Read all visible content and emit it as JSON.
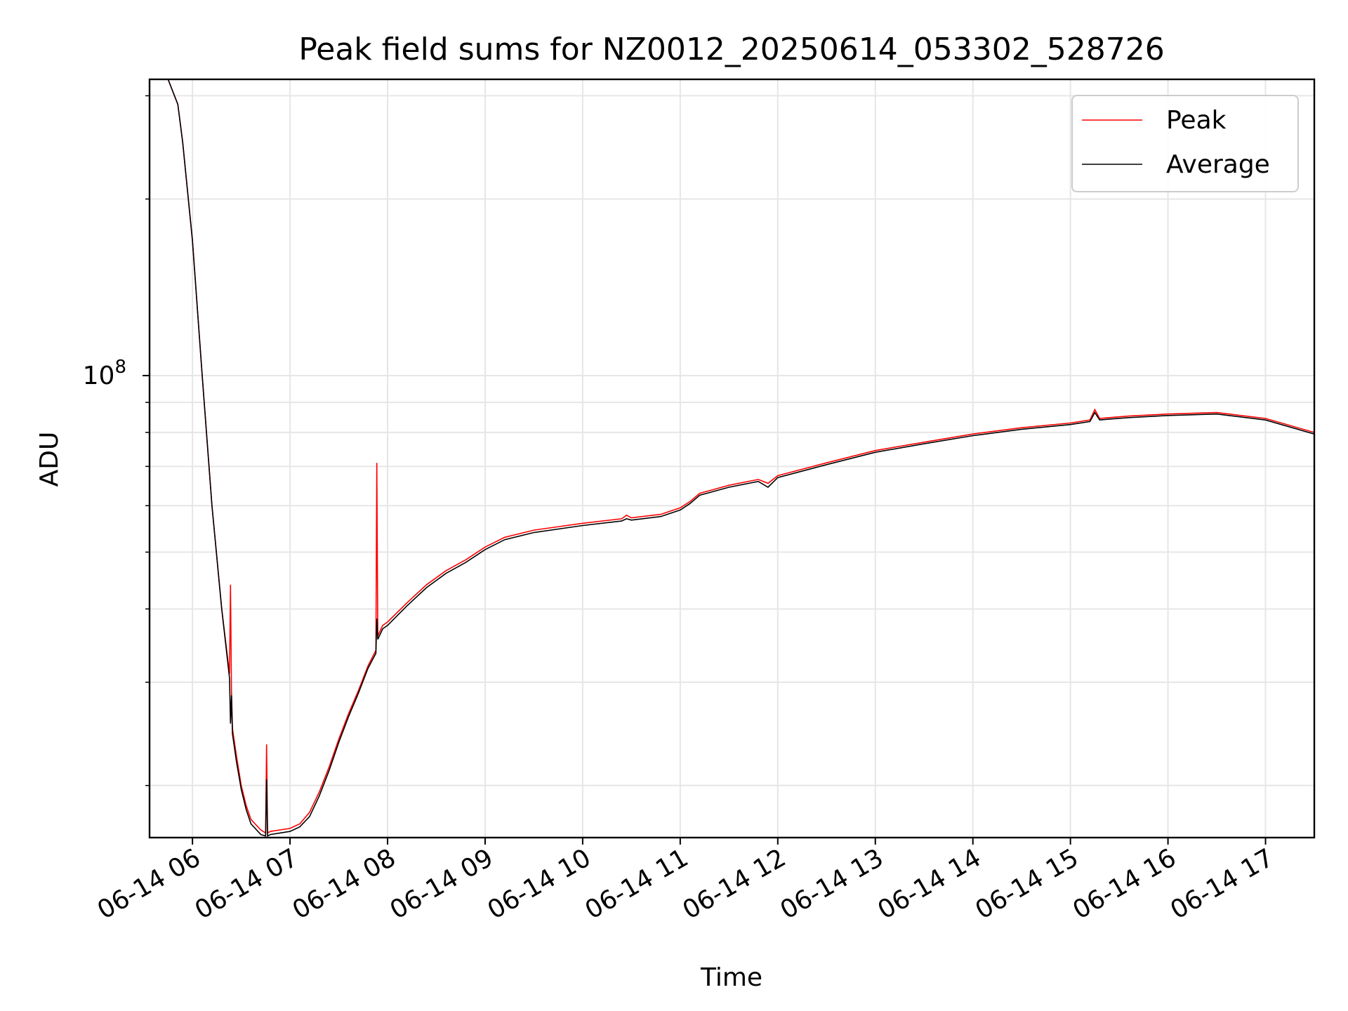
{
  "chart_data": {
    "type": "line",
    "title": "Peak field sums for NZ0012_20250614_053302_528726",
    "xlabel": "Time",
    "ylabel": "ADU",
    "y_scale": "log",
    "grid": true,
    "legend_position": "top-right",
    "x_ticks": [
      "06-14 06",
      "06-14 07",
      "06-14 08",
      "06-14 09",
      "06-14 10",
      "06-14 11",
      "06-14 12",
      "06-14 13",
      "06-14 14",
      "06-14 15",
      "06-14 16",
      "06-14 17"
    ],
    "x_tick_hours": [
      6,
      7,
      8,
      9,
      10,
      11,
      12,
      13,
      14,
      15,
      16,
      17
    ],
    "x_range_hours": [
      5.56,
      17.5
    ],
    "y_major_tick": {
      "base": "10",
      "exponent": "8",
      "value": 100000000
    },
    "y_range": [
      16300000,
      320000000
    ],
    "series": [
      {
        "name": "Peak",
        "color": "#ff0000",
        "x_hours": [
          5.56,
          5.75,
          5.85,
          5.9,
          6.0,
          6.1,
          6.2,
          6.3,
          6.38,
          6.39,
          6.4,
          6.41,
          6.45,
          6.5,
          6.55,
          6.6,
          6.7,
          6.75,
          6.76,
          6.77,
          6.8,
          6.9,
          7.0,
          7.1,
          7.2,
          7.3,
          7.4,
          7.5,
          7.6,
          7.7,
          7.8,
          7.88,
          7.89,
          7.9,
          7.95,
          8.0,
          8.2,
          8.4,
          8.6,
          8.8,
          9.0,
          9.2,
          9.5,
          10.0,
          10.4,
          10.45,
          10.5,
          10.8,
          11.0,
          11.1,
          11.2,
          11.5,
          11.8,
          11.9,
          12.0,
          12.5,
          13.0,
          13.5,
          14.0,
          14.5,
          15.0,
          15.2,
          15.25,
          15.3,
          15.4,
          15.6,
          16.0,
          16.5,
          17.0,
          17.5
        ],
        "y": [
          320000000,
          320000000,
          290000000,
          250000000,
          170000000,
          100000000,
          60000000,
          40000000,
          31000000,
          44000000,
          29000000,
          25000000,
          22500000,
          20000000,
          18500000,
          17500000,
          16800000,
          16600000,
          23500000,
          16600000,
          16700000,
          16800000,
          16900000,
          17200000,
          18000000,
          19500000,
          21500000,
          24000000,
          26500000,
          29000000,
          32000000,
          34000000,
          71000000,
          36000000,
          37500000,
          38000000,
          41000000,
          44000000,
          46500000,
          48500000,
          51000000,
          53000000,
          54500000,
          56000000,
          57000000,
          57800000,
          57200000,
          58000000,
          59500000,
          61000000,
          63000000,
          65000000,
          66500000,
          65500000,
          67500000,
          71000000,
          74500000,
          77000000,
          79500000,
          81500000,
          83000000,
          84000000,
          87500000,
          84500000,
          84800000,
          85300000,
          86000000,
          86500000,
          84500000,
          80000000
        ]
      },
      {
        "name": "Average",
        "color": "#000000",
        "x_hours": [
          5.56,
          5.75,
          5.85,
          5.9,
          6.0,
          6.1,
          6.2,
          6.3,
          6.38,
          6.39,
          6.4,
          6.41,
          6.45,
          6.5,
          6.55,
          6.6,
          6.7,
          6.75,
          6.76,
          6.77,
          6.8,
          6.9,
          7.0,
          7.1,
          7.2,
          7.3,
          7.4,
          7.5,
          7.6,
          7.7,
          7.8,
          7.88,
          7.89,
          7.9,
          7.95,
          8.0,
          8.2,
          8.4,
          8.6,
          8.8,
          9.0,
          9.2,
          9.5,
          10.0,
          10.4,
          10.45,
          10.5,
          10.8,
          11.0,
          11.1,
          11.2,
          11.5,
          11.8,
          11.9,
          12.0,
          12.5,
          13.0,
          13.5,
          14.0,
          14.5,
          15.0,
          15.2,
          15.25,
          15.3,
          15.4,
          15.6,
          16.0,
          16.5,
          17.0,
          17.5
        ],
        "y": [
          320000000,
          320000000,
          290000000,
          250000000,
          170000000,
          100000000,
          60000000,
          40000000,
          30500000,
          25500000,
          28500000,
          24500000,
          22000000,
          19700000,
          18200000,
          17200000,
          16500000,
          16400000,
          20500000,
          16400000,
          16500000,
          16600000,
          16700000,
          17000000,
          17700000,
          19200000,
          21200000,
          23700000,
          26200000,
          28700000,
          31700000,
          33600000,
          38500000,
          35500000,
          37000000,
          37500000,
          40500000,
          43500000,
          46000000,
          48000000,
          50500000,
          52500000,
          54000000,
          55500000,
          56500000,
          57000000,
          56700000,
          57500000,
          59000000,
          60500000,
          62500000,
          64500000,
          66000000,
          64500000,
          67000000,
          70500000,
          74000000,
          76500000,
          79000000,
          81000000,
          82500000,
          83500000,
          86500000,
          84000000,
          84300000,
          84800000,
          85500000,
          86000000,
          84000000,
          79500000
        ]
      }
    ]
  }
}
